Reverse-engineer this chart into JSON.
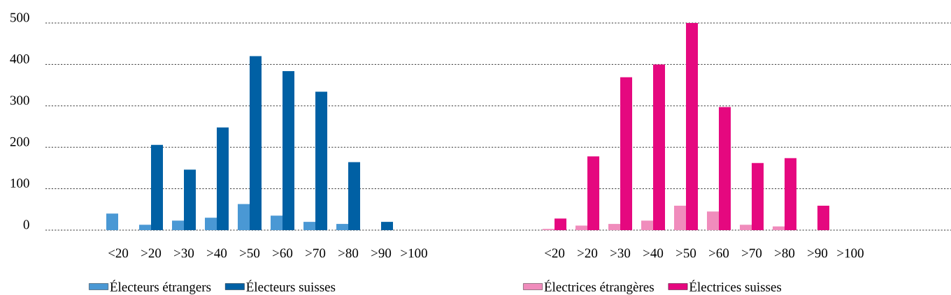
{
  "chart_data": [
    {
      "type": "bar",
      "categories": [
        "<20",
        ">20",
        ">30",
        ">40",
        ">50",
        ">60",
        ">70",
        ">80",
        ">90",
        ">100"
      ],
      "series": [
        {
          "name": "Électeurs étrangers",
          "color": "#4a98d4",
          "values": [
            40,
            13,
            23,
            30,
            63,
            35,
            20,
            15,
            null,
            null
          ]
        },
        {
          "name": "Électeurs suisses",
          "color": "#0060a4",
          "values": [
            null,
            206,
            146,
            248,
            420,
            384,
            334,
            164,
            20,
            null
          ]
        }
      ],
      "ylim": [
        0,
        500
      ],
      "yticks": [
        0,
        100,
        200,
        300,
        400,
        500
      ],
      "grid": "y",
      "legend": "bottom"
    },
    {
      "type": "bar",
      "categories": [
        "<20",
        ">20",
        ">30",
        ">40",
        ">50",
        ">60",
        ">70",
        ">80",
        ">90",
        ">100"
      ],
      "series": [
        {
          "name": "Électrices étrangères",
          "color": "#f08cbc",
          "values": [
            3,
            11,
            15,
            23,
            59,
            45,
            13,
            9,
            null,
            null
          ]
        },
        {
          "name": "Électrices suisses",
          "color": "#e5087f",
          "values": [
            28,
            178,
            369,
            400,
            500,
            297,
            162,
            174,
            59,
            null
          ]
        }
      ],
      "ylim": [
        0,
        500
      ],
      "yticks": [
        0,
        100,
        200,
        300,
        400,
        500
      ],
      "grid": "y",
      "legend": "bottom",
      "tick_labels": "x"
    }
  ]
}
